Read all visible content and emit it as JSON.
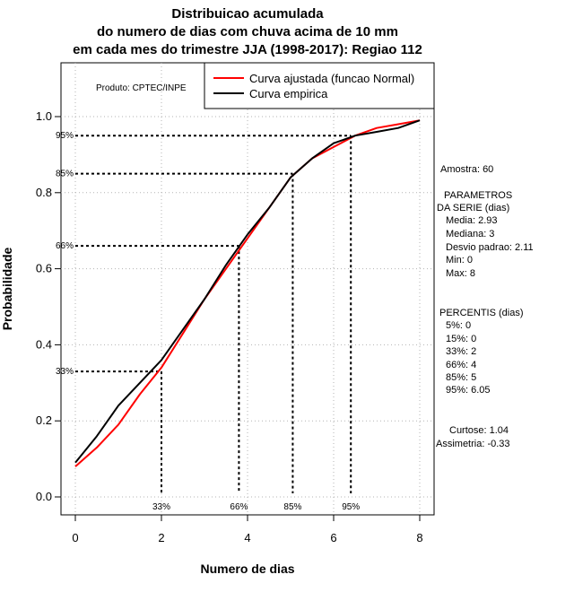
{
  "chart_data": {
    "type": "line",
    "title_lines": [
      "Distribuicao acumulada",
      "do numero de dias com chuva acima de 10 mm",
      "em cada mes do trimestre JJA (1998-2017): Regiao 112"
    ],
    "xlabel": "Numero de dias",
    "ylabel": "Probabilidade",
    "xlim": [
      0,
      8
    ],
    "ylim": [
      0,
      1.1
    ],
    "x_ticks": [
      0,
      2,
      4,
      6,
      8
    ],
    "x_tick_labels": [
      "0",
      "2",
      "4",
      "6",
      "8"
    ],
    "y_ticks": [
      0.0,
      0.2,
      0.4,
      0.6,
      0.8,
      1.0
    ],
    "y_tick_labels": [
      "0.0",
      "0.2",
      "0.4",
      "0.6",
      "0.8",
      "1.0"
    ],
    "grid": true,
    "legend_position": "top-right",
    "product_label": "Produto: CPTEC/INPE",
    "series": [
      {
        "name": "Curva ajustada (funcao Normal)",
        "color": "#ff0000",
        "x": [
          0,
          0.5,
          1.0,
          1.5,
          2.0,
          2.5,
          3.0,
          3.5,
          4.0,
          4.5,
          5.0,
          5.5,
          6.0,
          6.5,
          7.0,
          7.5,
          8.0
        ],
        "y": [
          0.08,
          0.13,
          0.19,
          0.27,
          0.34,
          0.43,
          0.52,
          0.6,
          0.68,
          0.76,
          0.84,
          0.89,
          0.92,
          0.95,
          0.97,
          0.98,
          0.99
        ]
      },
      {
        "name": "Curva empirica",
        "color": "#000000",
        "x": [
          0,
          0.5,
          1.0,
          1.5,
          2.0,
          2.5,
          3.0,
          3.5,
          4.0,
          4.5,
          5.0,
          5.5,
          6.0,
          6.5,
          7.0,
          7.5,
          8.0
        ],
        "y": [
          0.09,
          0.16,
          0.24,
          0.3,
          0.36,
          0.44,
          0.52,
          0.61,
          0.69,
          0.76,
          0.84,
          0.89,
          0.93,
          0.95,
          0.96,
          0.97,
          0.99
        ]
      }
    ],
    "percentile_guides": [
      {
        "label": "33%",
        "prob": 0.33,
        "x": 2.0
      },
      {
        "label": "66%",
        "prob": 0.66,
        "x": 3.8
      },
      {
        "label": "85%",
        "prob": 0.85,
        "x": 5.05
      },
      {
        "label": "95%",
        "prob": 0.95,
        "x": 6.4
      }
    ],
    "side_panel": {
      "amostra": "Amostra: 60",
      "param_title_1": "PARAMETROS",
      "param_title_2": "DA SERIE (dias)",
      "params": [
        "Media: 2.93",
        "Mediana: 3",
        "Desvio padrao: 2.11",
        "Min: 0",
        "Max: 8"
      ],
      "percentis_title": "PERCENTIS (dias)",
      "percentis": [
        "5%: 0",
        "15%: 0",
        "33%: 2",
        "66%: 4",
        "85%: 5",
        "95%: 6.05"
      ],
      "curtose": "Curtose: 1.04",
      "assimetria": "Assimetria: -0.33"
    }
  }
}
